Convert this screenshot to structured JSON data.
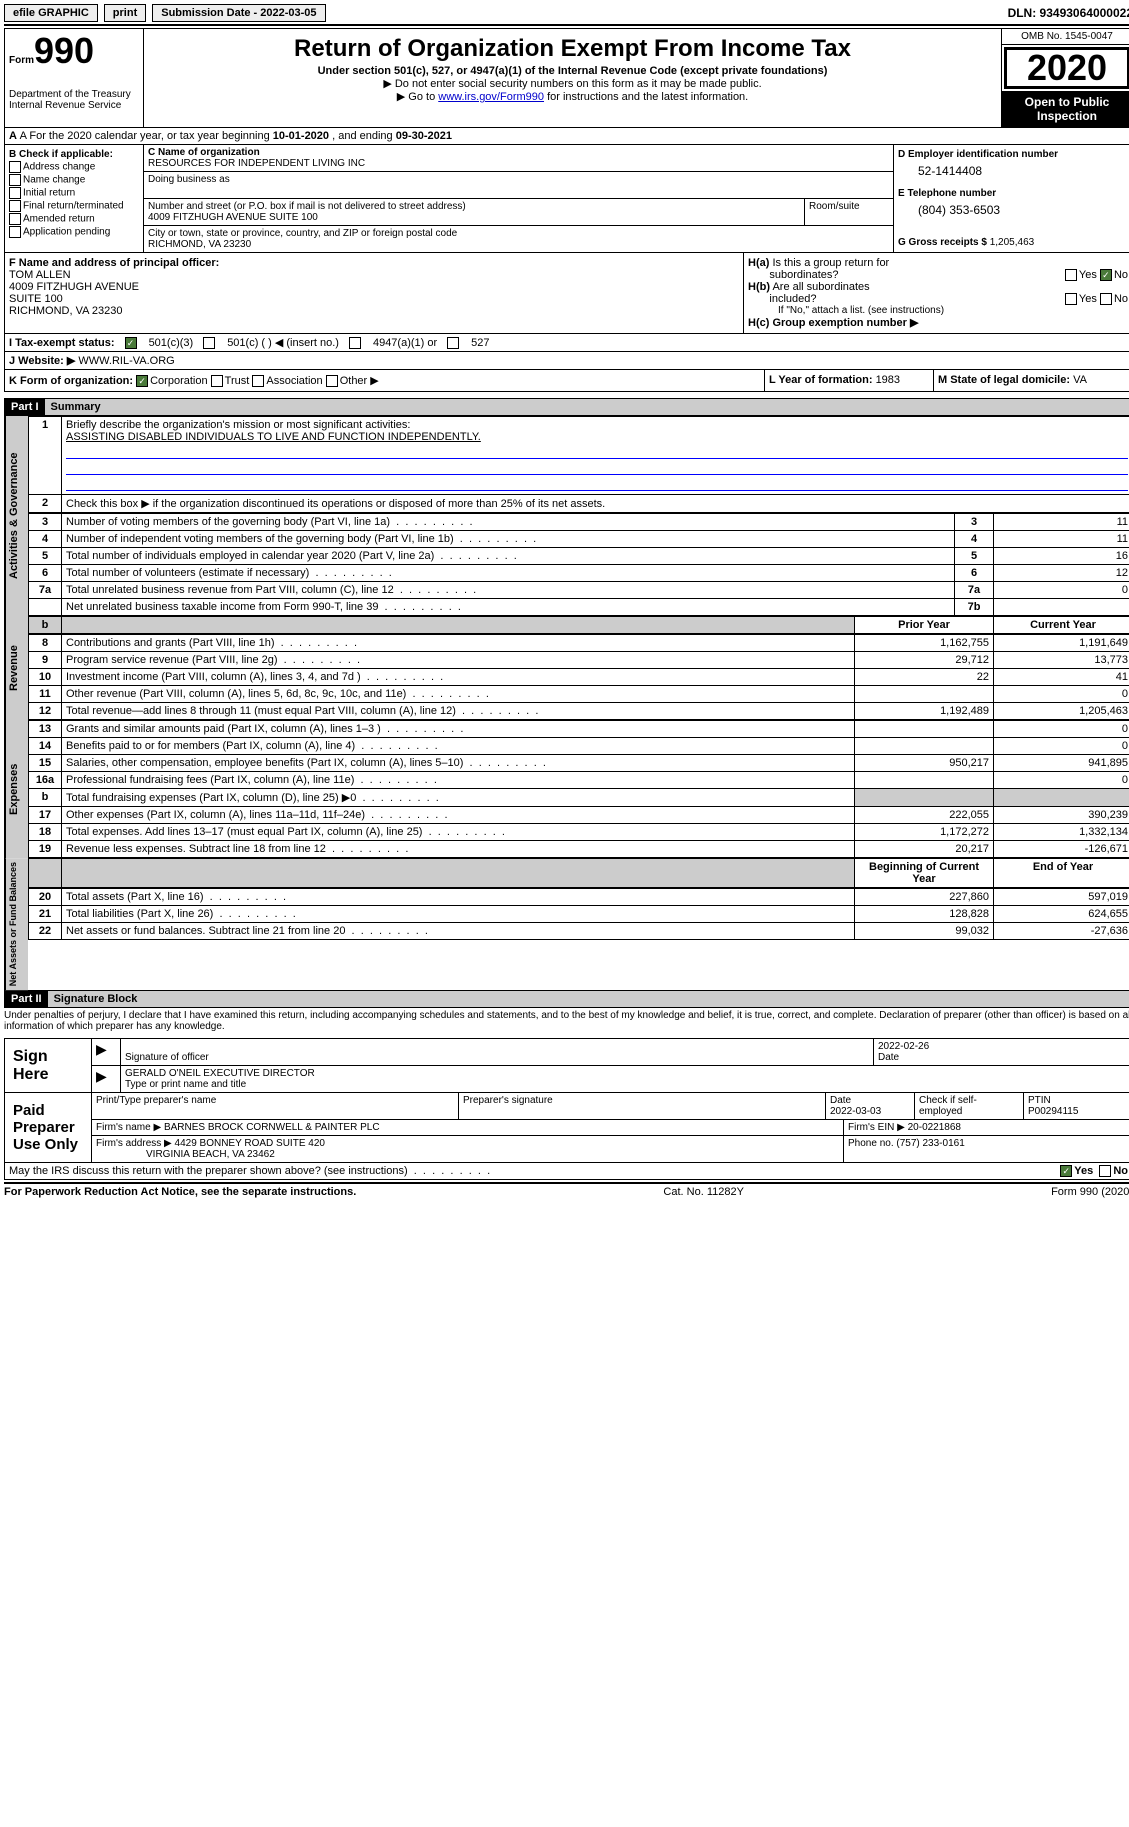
{
  "topbar": {
    "efile": "efile GRAPHIC",
    "print": "print",
    "submission_label": "Submission Date - 2022-03-05",
    "dln": "DLN: 93493064000022"
  },
  "header": {
    "form_label": "Form",
    "form_number": "990",
    "dept": "Department of the Treasury\nInternal Revenue Service",
    "title": "Return of Organization Exempt From Income Tax",
    "subtitle": "Under section 501(c), 527, or 4947(a)(1) of the Internal Revenue Code (except private foundations)",
    "note1": "▶ Do not enter social security numbers on this form as it may be made public.",
    "note2_prefix": "▶ Go to ",
    "note2_link": "www.irs.gov/Form990",
    "note2_suffix": " for instructions and the latest information.",
    "omb": "OMB No. 1545-0047",
    "year": "2020",
    "open": "Open to Public Inspection"
  },
  "row_a": {
    "text_prefix": "A For the 2020 calendar year, or tax year beginning ",
    "begin": "10-01-2020",
    "text_mid": " , and ending ",
    "end": "09-30-2021"
  },
  "col_b": {
    "label": "B Check if applicable:",
    "opts": [
      "Address change",
      "Name change",
      "Initial return",
      "Final return/terminated",
      "Amended return",
      "Application pending"
    ]
  },
  "col_c": {
    "name_label": "C Name of organization",
    "name": "RESOURCES FOR INDEPENDENT LIVING INC",
    "dba_label": "Doing business as",
    "dba": "",
    "street_label": "Number and street (or P.O. box if mail is not delivered to street address)",
    "room_label": "Room/suite",
    "street": "4009 FITZHUGH AVENUE SUITE 100",
    "city_label": "City or town, state or province, country, and ZIP or foreign postal code",
    "city": "RICHMOND, VA  23230"
  },
  "col_d": {
    "d_label": "D Employer identification number",
    "d_val": "52-1414408",
    "e_label": "E Telephone number",
    "e_val": "(804) 353-6503",
    "g_label": "G Gross receipts $ ",
    "g_val": "1,205,463"
  },
  "row_f": {
    "label": "F Name and address of principal officer:",
    "name": "TOM ALLEN",
    "addr1": "4009 FITZHUGH AVENUE",
    "addr2": "SUITE 100",
    "addr3": "RICHMOND, VA  23230"
  },
  "row_h": {
    "ha_label": "H(a)  Is this a group return for subordinates?",
    "hb_label": "H(b)  Are all subordinates included?",
    "hb_note": "If \"No,\" attach a list. (see instructions)",
    "hc_label": "H(c)  Group exemption number ▶",
    "yes": "Yes",
    "no": "No"
  },
  "row_i": {
    "label": "I   Tax-exempt status:",
    "opt1": "501(c)(3)",
    "opt2": "501(c) (   ) ◀ (insert no.)",
    "opt3": "4947(a)(1) or",
    "opt4": "527"
  },
  "row_j": {
    "label": "J   Website: ▶",
    "val": "WWW.RIL-VA.ORG"
  },
  "row_k": {
    "label": "K Form of organization:",
    "opts": [
      "Corporation",
      "Trust",
      "Association",
      "Other ▶"
    ],
    "l_label": "L Year of formation: ",
    "l_val": "1983",
    "m_label": "M State of legal domicile: ",
    "m_val": "VA"
  },
  "part1": {
    "header": "Part I",
    "title": "Summary",
    "q1": "Briefly describe the organization's mission or most significant activities:",
    "mission": "ASSISTING DISABLED INDIVIDUALS TO LIVE AND FUNCTION INDEPENDENTLY.",
    "q2": "Check this box ▶      if the organization discontinued its operations or disposed of more than 25% of its net assets.",
    "rows_gov": [
      {
        "n": "3",
        "d": "Number of voting members of the governing body (Part VI, line 1a)",
        "box": "3",
        "v": "11"
      },
      {
        "n": "4",
        "d": "Number of independent voting members of the governing body (Part VI, line 1b)",
        "box": "4",
        "v": "11"
      },
      {
        "n": "5",
        "d": "Total number of individuals employed in calendar year 2020 (Part V, line 2a)",
        "box": "5",
        "v": "16"
      },
      {
        "n": "6",
        "d": "Total number of volunteers (estimate if necessary)",
        "box": "6",
        "v": "12"
      },
      {
        "n": "7a",
        "d": "Total unrelated business revenue from Part VIII, column (C), line 12",
        "box": "7a",
        "v": "0"
      },
      {
        "n": "",
        "d": "Net unrelated business taxable income from Form 990-T, line 39",
        "box": "7b",
        "v": ""
      }
    ],
    "col_prior": "Prior Year",
    "col_current": "Current Year",
    "rows_rev": [
      {
        "n": "8",
        "d": "Contributions and grants (Part VIII, line 1h)",
        "p": "1,162,755",
        "c": "1,191,649"
      },
      {
        "n": "9",
        "d": "Program service revenue (Part VIII, line 2g)",
        "p": "29,712",
        "c": "13,773"
      },
      {
        "n": "10",
        "d": "Investment income (Part VIII, column (A), lines 3, 4, and 7d )",
        "p": "22",
        "c": "41"
      },
      {
        "n": "11",
        "d": "Other revenue (Part VIII, column (A), lines 5, 6d, 8c, 9c, 10c, and 11e)",
        "p": "",
        "c": "0"
      },
      {
        "n": "12",
        "d": "Total revenue—add lines 8 through 11 (must equal Part VIII, column (A), line 12)",
        "p": "1,192,489",
        "c": "1,205,463"
      }
    ],
    "rows_exp": [
      {
        "n": "13",
        "d": "Grants and similar amounts paid (Part IX, column (A), lines 1–3 )",
        "p": "",
        "c": "0"
      },
      {
        "n": "14",
        "d": "Benefits paid to or for members (Part IX, column (A), line 4)",
        "p": "",
        "c": "0"
      },
      {
        "n": "15",
        "d": "Salaries, other compensation, employee benefits (Part IX, column (A), lines 5–10)",
        "p": "950,217",
        "c": "941,895"
      },
      {
        "n": "16a",
        "d": "Professional fundraising fees (Part IX, column (A), line 11e)",
        "p": "",
        "c": "0"
      },
      {
        "n": "b",
        "d": "Total fundraising expenses (Part IX, column (D), line 25) ▶0",
        "p": "GRAY",
        "c": "GRAY"
      },
      {
        "n": "17",
        "d": "Other expenses (Part IX, column (A), lines 11a–11d, 11f–24e)",
        "p": "222,055",
        "c": "390,239"
      },
      {
        "n": "18",
        "d": "Total expenses. Add lines 13–17 (must equal Part IX, column (A), line 25)",
        "p": "1,172,272",
        "c": "1,332,134"
      },
      {
        "n": "19",
        "d": "Revenue less expenses. Subtract line 18 from line 12",
        "p": "20,217",
        "c": "-126,671"
      }
    ],
    "col_begin": "Beginning of Current Year",
    "col_end": "End of Year",
    "rows_net": [
      {
        "n": "20",
        "d": "Total assets (Part X, line 16)",
        "p": "227,860",
        "c": "597,019"
      },
      {
        "n": "21",
        "d": "Total liabilities (Part X, line 26)",
        "p": "128,828",
        "c": "624,655"
      },
      {
        "n": "22",
        "d": "Net assets or fund balances. Subtract line 21 from line 20",
        "p": "99,032",
        "c": "-27,636"
      }
    ],
    "tab_gov": "Activities & Governance",
    "tab_rev": "Revenue",
    "tab_exp": "Expenses",
    "tab_net": "Net Assets or Fund Balances"
  },
  "part2": {
    "header": "Part II",
    "title": "Signature Block",
    "penalties": "Under penalties of perjury, I declare that I have examined this return, including accompanying schedules and statements, and to the best of my knowledge and belief, it is true, correct, and complete. Declaration of preparer (other than officer) is based on all information of which preparer has any knowledge.",
    "sign_here": "Sign Here",
    "sig_officer_label": "Signature of officer",
    "date_label": "Date",
    "sig_date": "2022-02-26",
    "printed_name": "GERALD O'NEIL  EXECUTIVE DIRECTOR",
    "printed_label": "Type or print name and title",
    "paid": "Paid Preparer Use Only",
    "prep_name_label": "Print/Type preparer's name",
    "prep_sig_label": "Preparer's signature",
    "prep_date_label": "Date",
    "prep_date": "2022-03-03",
    "self_emp": "Check       if self-employed",
    "ptin_label": "PTIN",
    "ptin": "P00294115",
    "firm_name_label": "Firm's name    ▶ ",
    "firm_name": "BARNES BROCK CORNWELL & PAINTER PLC",
    "firm_ein_label": "Firm's EIN ▶ ",
    "firm_ein": "20-0221868",
    "firm_addr_label": "Firm's address ▶ ",
    "firm_addr": "4429 BONNEY ROAD SUITE 420",
    "firm_city": "VIRGINIA BEACH, VA  23462",
    "phone_label": "Phone no. ",
    "phone": "(757) 233-0161",
    "discuss": "May the IRS discuss this return with the preparer shown above? (see instructions)",
    "yes": "Yes",
    "no": "No"
  },
  "footer": {
    "left": "For Paperwork Reduction Act Notice, see the separate instructions.",
    "mid": "Cat. No. 11282Y",
    "right": "Form 990 (2020)"
  }
}
